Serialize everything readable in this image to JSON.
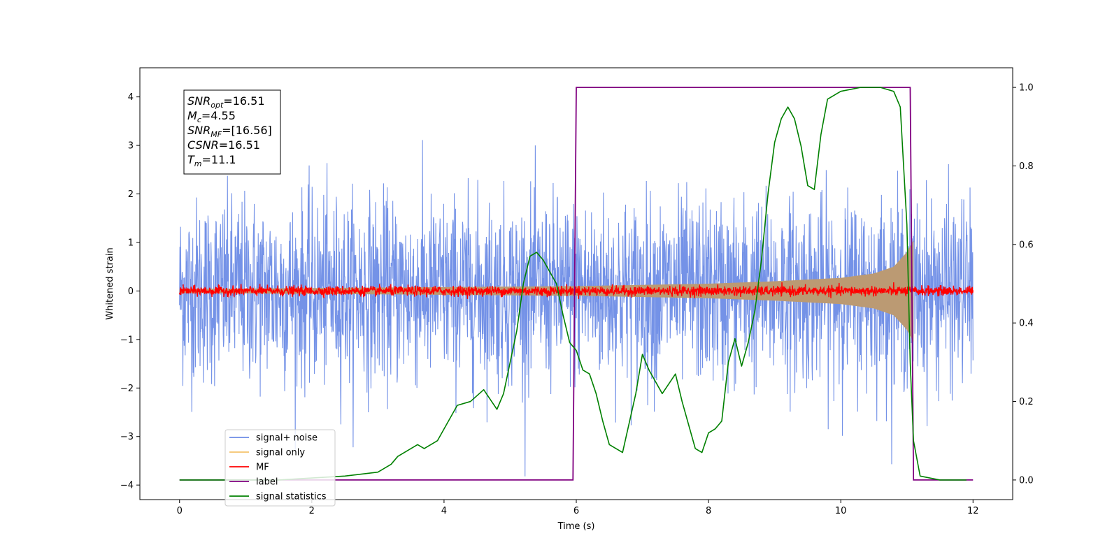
{
  "chart_data": {
    "type": "line",
    "xlabel": "Time (s)",
    "ylabel": "Whitened strain",
    "xlim": [
      -0.6,
      12.6
    ],
    "ylim": [
      -4.3,
      4.6
    ],
    "y2lim": [
      -0.05,
      1.05
    ],
    "x_ticks": [
      0,
      2,
      4,
      6,
      8,
      10,
      12
    ],
    "y_ticks": [
      -4,
      -3,
      -2,
      -1,
      0,
      1,
      2,
      3,
      4
    ],
    "y2_ticks": [
      0.0,
      0.2,
      0.4,
      0.6,
      0.8,
      1.0
    ],
    "x_tick_labels": [
      "0",
      "2",
      "4",
      "6",
      "8",
      "10",
      "12"
    ],
    "y_tick_labels": [
      "−4",
      "−3",
      "−2",
      "−1",
      "0",
      "1",
      "2",
      "3",
      "4"
    ],
    "y2_tick_labels": [
      "0.0",
      "0.2",
      "0.4",
      "0.6",
      "0.8",
      "1.0"
    ],
    "grid": false,
    "legend_position": "lower-left",
    "colors": {
      "signal_noise": "#6d8ce6",
      "signal_only": "#f5c26b",
      "signal_band": "#bb9a73",
      "mf": "#ff0000",
      "label": "#800080",
      "statistics": "#008000"
    },
    "annotation": {
      "lines": [
        {
          "symbol": "SNR",
          "sub": "opt",
          "value": "=16.51"
        },
        {
          "symbol": "M",
          "sub": "c",
          "value": "=4.55"
        },
        {
          "symbol": "SNR",
          "sub": "MF",
          "value": "=[16.56]"
        },
        {
          "symbol": "CSNR",
          "sub": "",
          "value": "=16.51"
        },
        {
          "symbol": "T",
          "sub": "m",
          "value": "=11.1"
        }
      ]
    },
    "series": [
      {
        "name": "signal+ noise",
        "kind": "noise",
        "x_range": [
          0,
          12
        ],
        "std": 1.0,
        "axis": "left"
      },
      {
        "name": "signal only",
        "kind": "chirp_envelope",
        "x_range": [
          0,
          11.1
        ],
        "envelope_x": [
          0,
          2,
          4,
          6,
          8,
          9,
          10,
          10.5,
          10.8,
          11.0,
          11.1
        ],
        "envelope_y": [
          0.04,
          0.06,
          0.08,
          0.1,
          0.15,
          0.2,
          0.27,
          0.36,
          0.5,
          0.8,
          1.05
        ],
        "axis": "left"
      },
      {
        "name": "MF",
        "kind": "noise",
        "x_range": [
          0,
          12
        ],
        "std": 0.05,
        "axis": "left"
      },
      {
        "name": "label",
        "kind": "step",
        "x": [
          0,
          5.95,
          6.0,
          11.05,
          11.1,
          12
        ],
        "y": [
          0,
          0,
          1,
          1,
          0,
          0
        ],
        "axis": "right"
      },
      {
        "name": "signal statistics",
        "kind": "line",
        "x": [
          0,
          0.5,
          1.0,
          1.5,
          2.0,
          2.5,
          3.0,
          3.2,
          3.3,
          3.5,
          3.6,
          3.7,
          3.8,
          3.9,
          4.0,
          4.2,
          4.4,
          4.6,
          4.8,
          4.9,
          5.0,
          5.1,
          5.2,
          5.3,
          5.4,
          5.5,
          5.6,
          5.7,
          5.8,
          5.9,
          6.0,
          6.1,
          6.2,
          6.3,
          6.4,
          6.5,
          6.7,
          6.9,
          7.0,
          7.1,
          7.3,
          7.5,
          7.6,
          7.8,
          7.9,
          8.0,
          8.1,
          8.2,
          8.3,
          8.4,
          8.5,
          8.6,
          8.7,
          8.8,
          8.9,
          9.0,
          9.1,
          9.2,
          9.3,
          9.4,
          9.5,
          9.6,
          9.7,
          9.8,
          10.0,
          10.3,
          10.6,
          10.8,
          10.9,
          11.0,
          11.05,
          11.1,
          11.2,
          11.5,
          11.9
        ],
        "y": [
          0.0,
          0.0,
          0.0,
          0.0,
          0.005,
          0.01,
          0.02,
          0.04,
          0.06,
          0.08,
          0.09,
          0.08,
          0.09,
          0.1,
          0.13,
          0.19,
          0.2,
          0.23,
          0.18,
          0.22,
          0.3,
          0.38,
          0.5,
          0.57,
          0.58,
          0.56,
          0.53,
          0.5,
          0.42,
          0.35,
          0.33,
          0.28,
          0.27,
          0.22,
          0.15,
          0.09,
          0.07,
          0.22,
          0.32,
          0.28,
          0.22,
          0.27,
          0.2,
          0.08,
          0.07,
          0.12,
          0.13,
          0.15,
          0.3,
          0.36,
          0.29,
          0.35,
          0.43,
          0.56,
          0.73,
          0.86,
          0.92,
          0.95,
          0.92,
          0.85,
          0.75,
          0.74,
          0.88,
          0.97,
          0.99,
          1.0,
          1.0,
          0.99,
          0.95,
          0.65,
          0.3,
          0.1,
          0.01,
          0.0,
          0.0
        ],
        "axis": "right"
      }
    ],
    "legend": [
      {
        "label": "signal+ noise",
        "color": "#6d8ce6"
      },
      {
        "label": "signal only",
        "color": "#f5c26b"
      },
      {
        "label": "MF",
        "color": "#ff0000"
      },
      {
        "label": "label",
        "color": "#800080"
      },
      {
        "label": "signal statistics",
        "color": "#008000"
      }
    ]
  }
}
